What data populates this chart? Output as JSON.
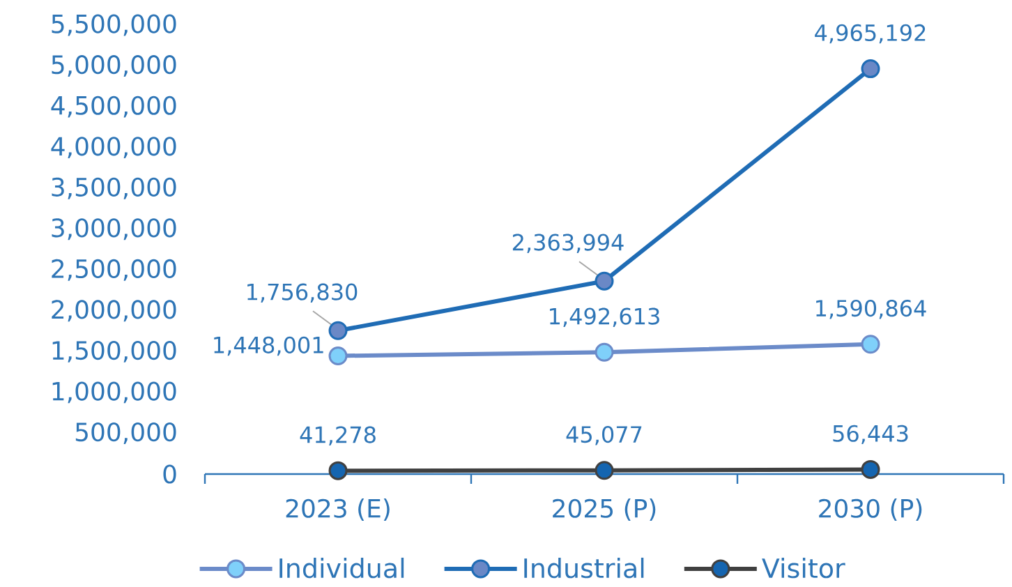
{
  "chart_data": {
    "type": "line",
    "categories": [
      "2023 (E)",
      "2025 (P)",
      "2030 (P)"
    ],
    "series": [
      {
        "name": "Individual",
        "color": "#6B8BC9",
        "colors": [
          "#7FD0FA",
          "#7FD0FA",
          "#7FD0FA"
        ],
        "values": [
          1448001,
          1492613,
          1590864
        ],
        "value_labels": [
          "1,448,001",
          "1,492,613",
          "1,590,864"
        ]
      },
      {
        "name": "Industrial",
        "color": "#1F6CB5",
        "colors": [
          "#6A88C6",
          "#6A88C6",
          "#6A88C6"
        ],
        "values": [
          1756830,
          2363994,
          4965192
        ],
        "value_labels": [
          "1,756,830",
          "2,363,994",
          "4,965,192"
        ]
      },
      {
        "name": "Visitor",
        "color": "#404040",
        "colors": [
          "#1565B0",
          "#1565B0",
          "#1565B0"
        ],
        "values": [
          41278,
          45077,
          56443
        ],
        "value_labels": [
          "41,278",
          "45,077",
          "56,443"
        ]
      }
    ],
    "ylim": [
      0,
      5500000
    ],
    "yticks": [
      0,
      {
        "value": 500000,
        "label": "500,000"
      },
      {
        "value": 1000000,
        "label": "1,000,000"
      },
      {
        "value": 1500000,
        "label": "1,500,000"
      },
      {
        "value": 2000000,
        "label": "2,000,000"
      },
      {
        "value": 2500000,
        "label": "2,500,000"
      },
      {
        "value": 3000000,
        "label": "3,000,000"
      },
      {
        "value": 3500000,
        "label": "3,500,000"
      },
      {
        "value": 4000000,
        "label": "4,000,000"
      },
      {
        "value": 4500000,
        "label": "4,500,000"
      },
      {
        "value": 5000000,
        "label": "5,000,000"
      },
      {
        "value": 5500000,
        "label": "5,500,000"
      }
    ],
    "marker": "circle",
    "line_style": "solid",
    "legend": "bottom"
  }
}
